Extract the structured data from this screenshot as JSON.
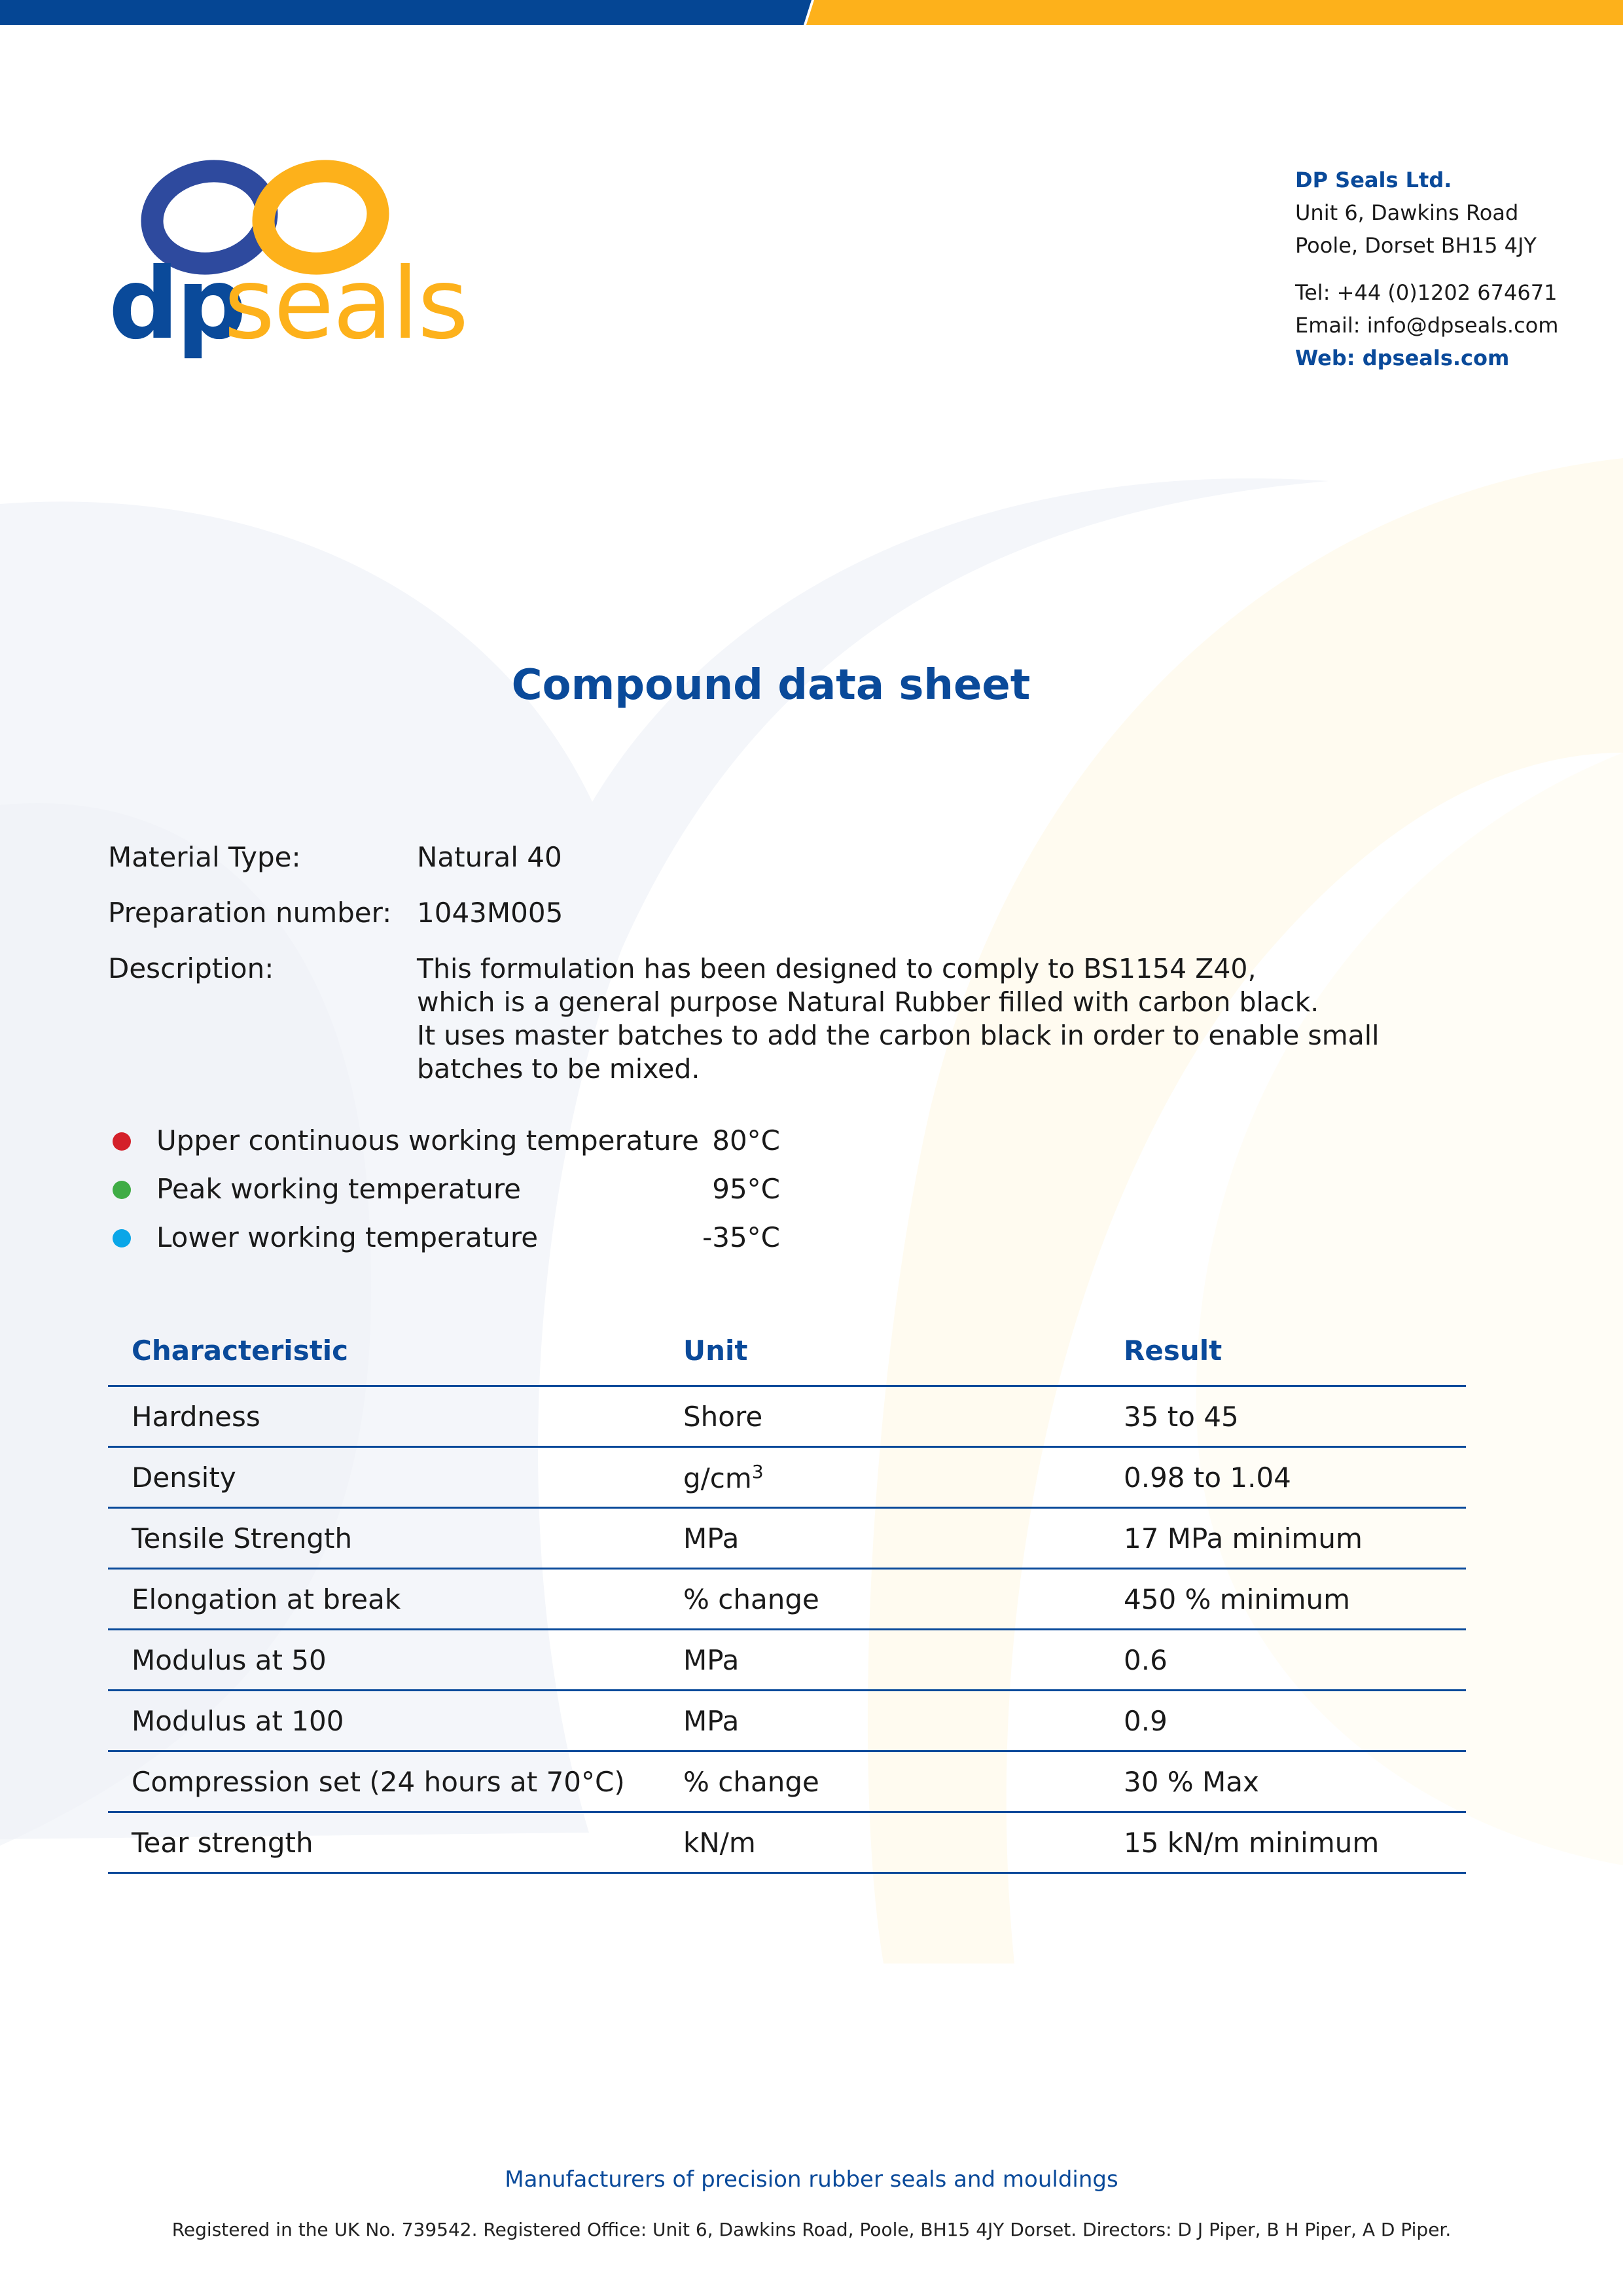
{
  "brand": {
    "logo_text_dp": "dp",
    "logo_text_seals": "seals",
    "colors": {
      "blue": "#0a4a9a",
      "yellow": "#fdb11b"
    }
  },
  "contact": {
    "company": "DP Seals Ltd.",
    "address_line1": "Unit 6, Dawkins Road",
    "address_line2": "Poole, Dorset BH15 4JY",
    "tel": "Tel: +44 (0)1202 674671",
    "email": "Email: info@dpseals.com",
    "web": "Web: dpseals.com"
  },
  "title": "Compound data sheet",
  "material": {
    "type_label": "Material Type:",
    "type_value": "Natural 40",
    "prep_label": "Preparation number:",
    "prep_value": "1043M005",
    "desc_label": "Description:",
    "desc_lines": [
      "This formulation has been designed to comply to BS1154 Z40,",
      "which is a general purpose Natural Rubber filled with carbon black.",
      "It uses master batches to add the carbon black in order to enable small",
      "batches to be mixed."
    ]
  },
  "temperatures": [
    {
      "label": "Upper continuous working temperature",
      "value": "80°C",
      "color": "#d4202a"
    },
    {
      "label": "Peak working temperature",
      "value": "95°C",
      "color": "#3fac45"
    },
    {
      "label": "Lower working temperature",
      "value": "-35°C",
      "color": "#0aa6e8"
    }
  ],
  "table": {
    "headers": [
      "Characteristic",
      "Unit",
      "Result"
    ],
    "rows": [
      [
        "Hardness",
        "Shore",
        "35 to 45"
      ],
      [
        "Density",
        "g/cm",
        "0.98 to 1.04"
      ],
      [
        "Tensile Strength",
        "MPa",
        "17 MPa minimum"
      ],
      [
        "Elongation at break",
        "% change",
        "450 % minimum"
      ],
      [
        "Modulus at 50",
        "MPa",
        "0.6"
      ],
      [
        "Modulus at 100",
        "MPa",
        "0.9"
      ],
      [
        "Compression set (24 hours at 70°C)",
        "% change",
        "30 % Max"
      ],
      [
        "Tear strength",
        "kN/m",
        "15 kN/m minimum"
      ]
    ],
    "density_sup": "3"
  },
  "footer": {
    "tagline": "Manufacturers of precision rubber seals and mouldings",
    "registered": "Registered in the UK No. 739542. Registered Office: Unit 6, Dawkins Road, Poole, BH15 4JY Dorset. Directors: D J Piper, B H Piper, A D Piper."
  }
}
